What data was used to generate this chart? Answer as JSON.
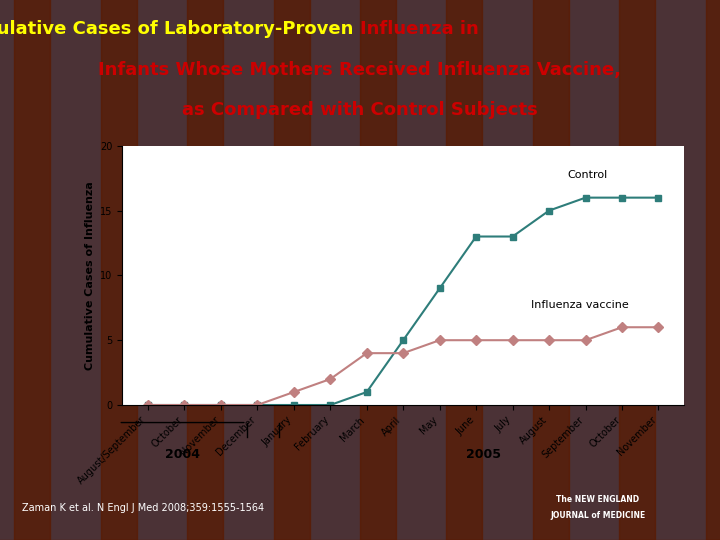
{
  "title_part1": "Cumulative Cases of Laboratory-Proven ",
  "title_part2": "Influenza in\nInfants Whose Mothers Received Influenza Vaccine,",
  "title_part3": "\nas Compared with Control Subjects",
  "bg_color": "#2a6db5",
  "slide_bg": "#2a6db5",
  "chart_bg": "#ffffff",
  "x_labels": [
    "August/September",
    "October",
    "November",
    "December",
    "January",
    "February",
    "March",
    "April",
    "May",
    "June",
    "July",
    "August",
    "September",
    "October",
    "November"
  ],
  "control_y": [
    0,
    0,
    0,
    0,
    0,
    0,
    1,
    5,
    9,
    13,
    13,
    15,
    16,
    16,
    16
  ],
  "vaccine_y": [
    0,
    0,
    0,
    0,
    1,
    2,
    4,
    4,
    5,
    5,
    5,
    5,
    5,
    6,
    6
  ],
  "control_color": "#2e7d7a",
  "vaccine_color": "#c08080",
  "ylabel": "Cumulative Cases of Influenza",
  "ylim": [
    0,
    20
  ],
  "yticks": [
    0,
    5,
    10,
    15,
    20
  ],
  "control_label": "Control",
  "vaccine_label": "Influenza vaccine",
  "year_2004_label": "2004",
  "year_2005_label": "2005",
  "citation": "Zaman K et al. N Engl J Med 2008;359:1555-1564",
  "title_yellow_color": "#ffff00",
  "title_red_color": "#cc0000",
  "citation_color": "#ffffff"
}
